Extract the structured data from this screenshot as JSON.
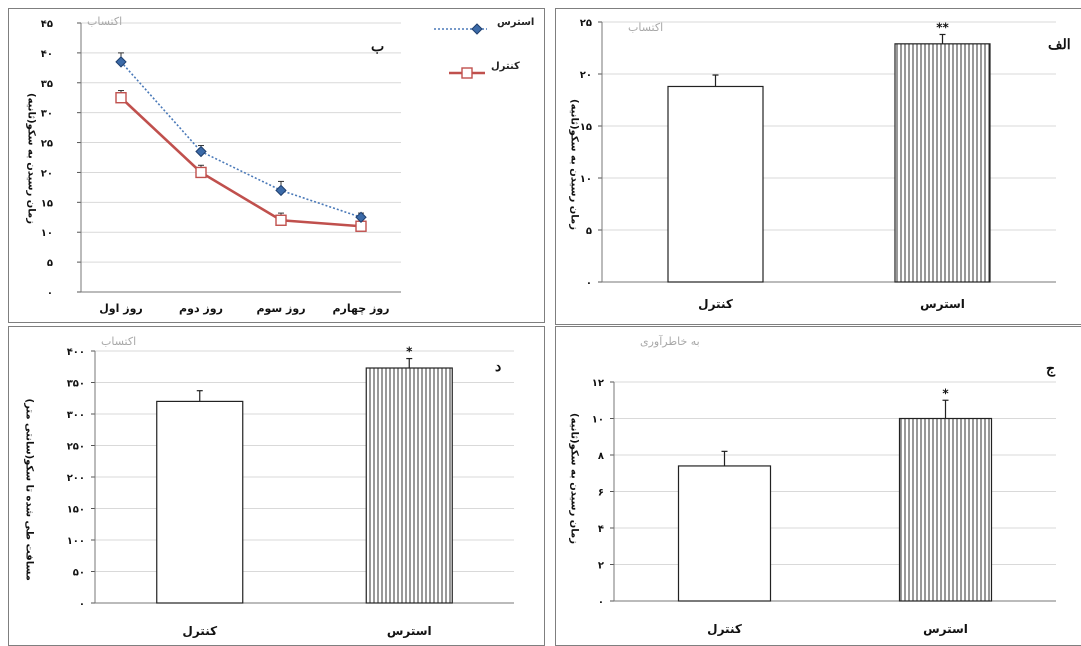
{
  "chart_data": [
    {
      "id": "b",
      "type": "line",
      "panel_label": "ب",
      "watermark": "اکتساب",
      "categories": [
        "روز اول",
        "روز دوم",
        "روز سوم",
        "روز چهارم"
      ],
      "series": [
        {
          "name": "استرس",
          "values": [
            38.5,
            23.5,
            17,
            12.5
          ],
          "errors": [
            1.5,
            1,
            1.5,
            0.7
          ],
          "color": "#4a79b8",
          "style": "dotted",
          "marker": "diamond"
        },
        {
          "name": "کنترل",
          "values": [
            32.5,
            20,
            12,
            11
          ],
          "errors": [
            1.2,
            1.2,
            1.2,
            0.5
          ],
          "color": "#c0504d",
          "style": "solid",
          "marker": "square"
        }
      ],
      "yticks": [
        0,
        5,
        10,
        15,
        20,
        25,
        30,
        35,
        40,
        45
      ],
      "ytick_labels": [
        "۰",
        "۵",
        "۱۰",
        "۱۵",
        "۲۰",
        "۲۵",
        "۳۰",
        "۳۵",
        "۴۰",
        "۴۵"
      ],
      "ylim": [
        0,
        45
      ],
      "ylabel": "زمان رسیدن به سکو(ثانیه)",
      "grid": true,
      "legend": "top-right"
    },
    {
      "id": "alef",
      "type": "bar",
      "panel_label": "الف",
      "watermark": "اکتساب",
      "categories": [
        "کنترل",
        "استرس"
      ],
      "values": [
        18.8,
        22.9
      ],
      "errors": [
        1.1,
        0.9
      ],
      "significance": [
        "",
        "**"
      ],
      "yticks": [
        0,
        5,
        10,
        15,
        20,
        25
      ],
      "ytick_labels": [
        "۰",
        "۵",
        "۱۰",
        "۱۵",
        "۲۰",
        "۲۵"
      ],
      "ylim": [
        0,
        25
      ],
      "ylabel": "زمان رسیدن به سکو(ثانیه)",
      "grid": true
    },
    {
      "id": "dal",
      "type": "bar",
      "panel_label": "د",
      "watermark": "اکتساب",
      "categories": [
        "کنترل",
        "استرس"
      ],
      "values": [
        320,
        373
      ],
      "errors": [
        17,
        15
      ],
      "significance": [
        "",
        "*"
      ],
      "yticks": [
        0,
        50,
        100,
        150,
        200,
        250,
        300,
        350,
        400
      ],
      "ytick_labels": [
        "۰",
        "۵۰",
        "۱۰۰",
        "۱۵۰",
        "۲۰۰",
        "۲۵۰",
        "۳۰۰",
        "۳۵۰",
        "۴۰۰"
      ],
      "ylim": [
        0,
        400
      ],
      "ylabel": "مسافت طی شده تا سکو(سانتی متر)",
      "grid": true
    },
    {
      "id": "jim",
      "type": "bar",
      "panel_label": "ج",
      "watermark": "به خاطرآوری",
      "categories": [
        "کنترل",
        "استرس"
      ],
      "values": [
        7.4,
        10
      ],
      "errors": [
        0.8,
        1
      ],
      "significance": [
        "",
        "*"
      ],
      "yticks": [
        0,
        2,
        4,
        6,
        8,
        10,
        12
      ],
      "ytick_labels": [
        "۰",
        "۲",
        "۴",
        "۶",
        "۸",
        "۱۰",
        "۱۲"
      ],
      "ylim": [
        0,
        12
      ],
      "ylabel": "زمان رسیدن به سکو(ثانیه)",
      "grid": true
    }
  ]
}
